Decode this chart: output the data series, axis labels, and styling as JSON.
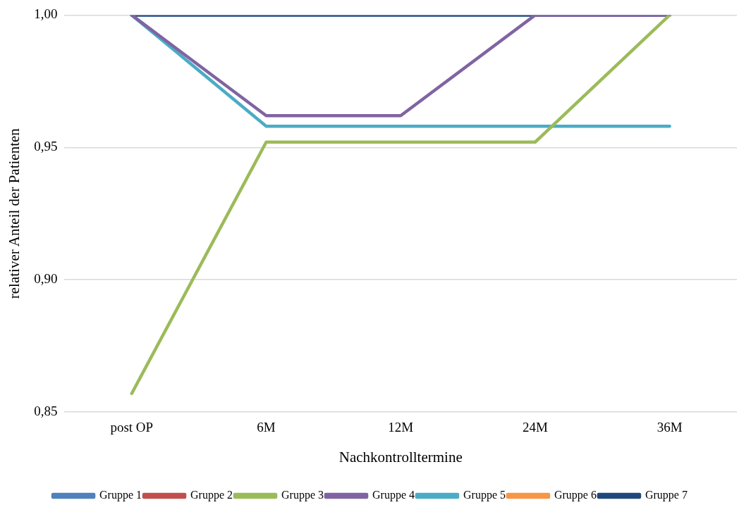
{
  "chart_data": {
    "type": "line",
    "xlabel": "Nachkontrolltermine",
    "ylabel": "relativer Anteil der Patienten",
    "categories": [
      "post OP",
      "6M",
      "12M",
      "24M",
      "36M"
    ],
    "series": [
      {
        "name": "Gruppe 1",
        "color": "#4f81bd",
        "values": [
          null,
          null,
          null,
          null,
          null
        ]
      },
      {
        "name": "Gruppe 2",
        "color": "#c0504d",
        "values": [
          null,
          null,
          null,
          null,
          null
        ]
      },
      {
        "name": "Gruppe 3",
        "color": "#9bbb59",
        "values": [
          0.857,
          0.952,
          0.952,
          0.952,
          1.0
        ]
      },
      {
        "name": "Gruppe 4",
        "color": "#8064a2",
        "values": [
          1.0,
          0.962,
          0.962,
          1.0,
          1.0
        ]
      },
      {
        "name": "Gruppe 5",
        "color": "#4bacc6",
        "values": [
          1.0,
          0.958,
          0.958,
          0.958,
          0.958
        ]
      },
      {
        "name": "Gruppe 6",
        "color": "#f79646",
        "values": [
          null,
          null,
          null,
          null,
          null
        ]
      },
      {
        "name": "Gruppe 7",
        "color": "#1f497d",
        "values": [
          1.0,
          1.0,
          1.0,
          1.0,
          1.0
        ]
      }
    ],
    "ylim": [
      0.85,
      1.0
    ],
    "yticks": [
      {
        "value": 0.85,
        "label": "0,85"
      },
      {
        "value": 0.9,
        "label": "0,90"
      },
      {
        "value": 0.95,
        "label": "0,95"
      },
      {
        "value": 1.0,
        "label": "1,00"
      }
    ],
    "grid": "y",
    "legend": "bottom",
    "marker": "none",
    "line_style": "solid"
  }
}
